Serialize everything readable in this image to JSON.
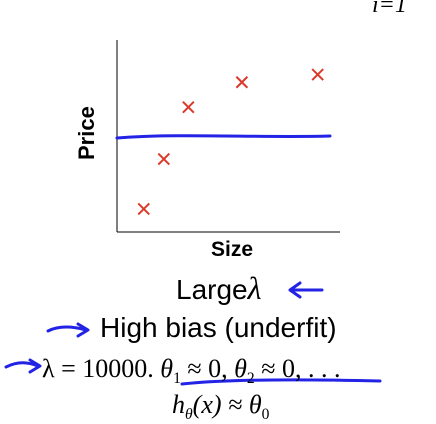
{
  "chart_data": {
    "type": "scatter",
    "xlabel": "Size",
    "ylabel": "Price",
    "xlim": [
      0,
      10
    ],
    "ylim": [
      0,
      10
    ],
    "points": [
      {
        "x": 1.2,
        "y": 1.2
      },
      {
        "x": 2.1,
        "y": 3.8
      },
      {
        "x": 3.2,
        "y": 6.5
      },
      {
        "x": 5.6,
        "y": 7.8
      },
      {
        "x": 9.0,
        "y": 8.2
      }
    ],
    "fit_line": {
      "x": [
        0,
        10
      ],
      "y": [
        5.0,
        5.0
      ]
    },
    "marker_color": "#d93a2b",
    "fit_color": "#2323e6"
  },
  "formula_top": "i=1",
  "heading": {
    "text": "Large",
    "symbol": "λ"
  },
  "subheading": "High bias (underfit)",
  "equation": {
    "lhs": "λ = 10000.",
    "theta1": "θ",
    "theta1_sub": "1",
    "approx1": " ≈ 0, ",
    "theta2": "θ",
    "theta2_sub": "2",
    "approx2": " ≈ 0, . . .",
    "h": "h",
    "h_sub": "θ",
    "h_rest": "(x) ≈ ",
    "theta0": "θ",
    "theta0_sub": "0"
  },
  "annotation_color": "#2323e6"
}
